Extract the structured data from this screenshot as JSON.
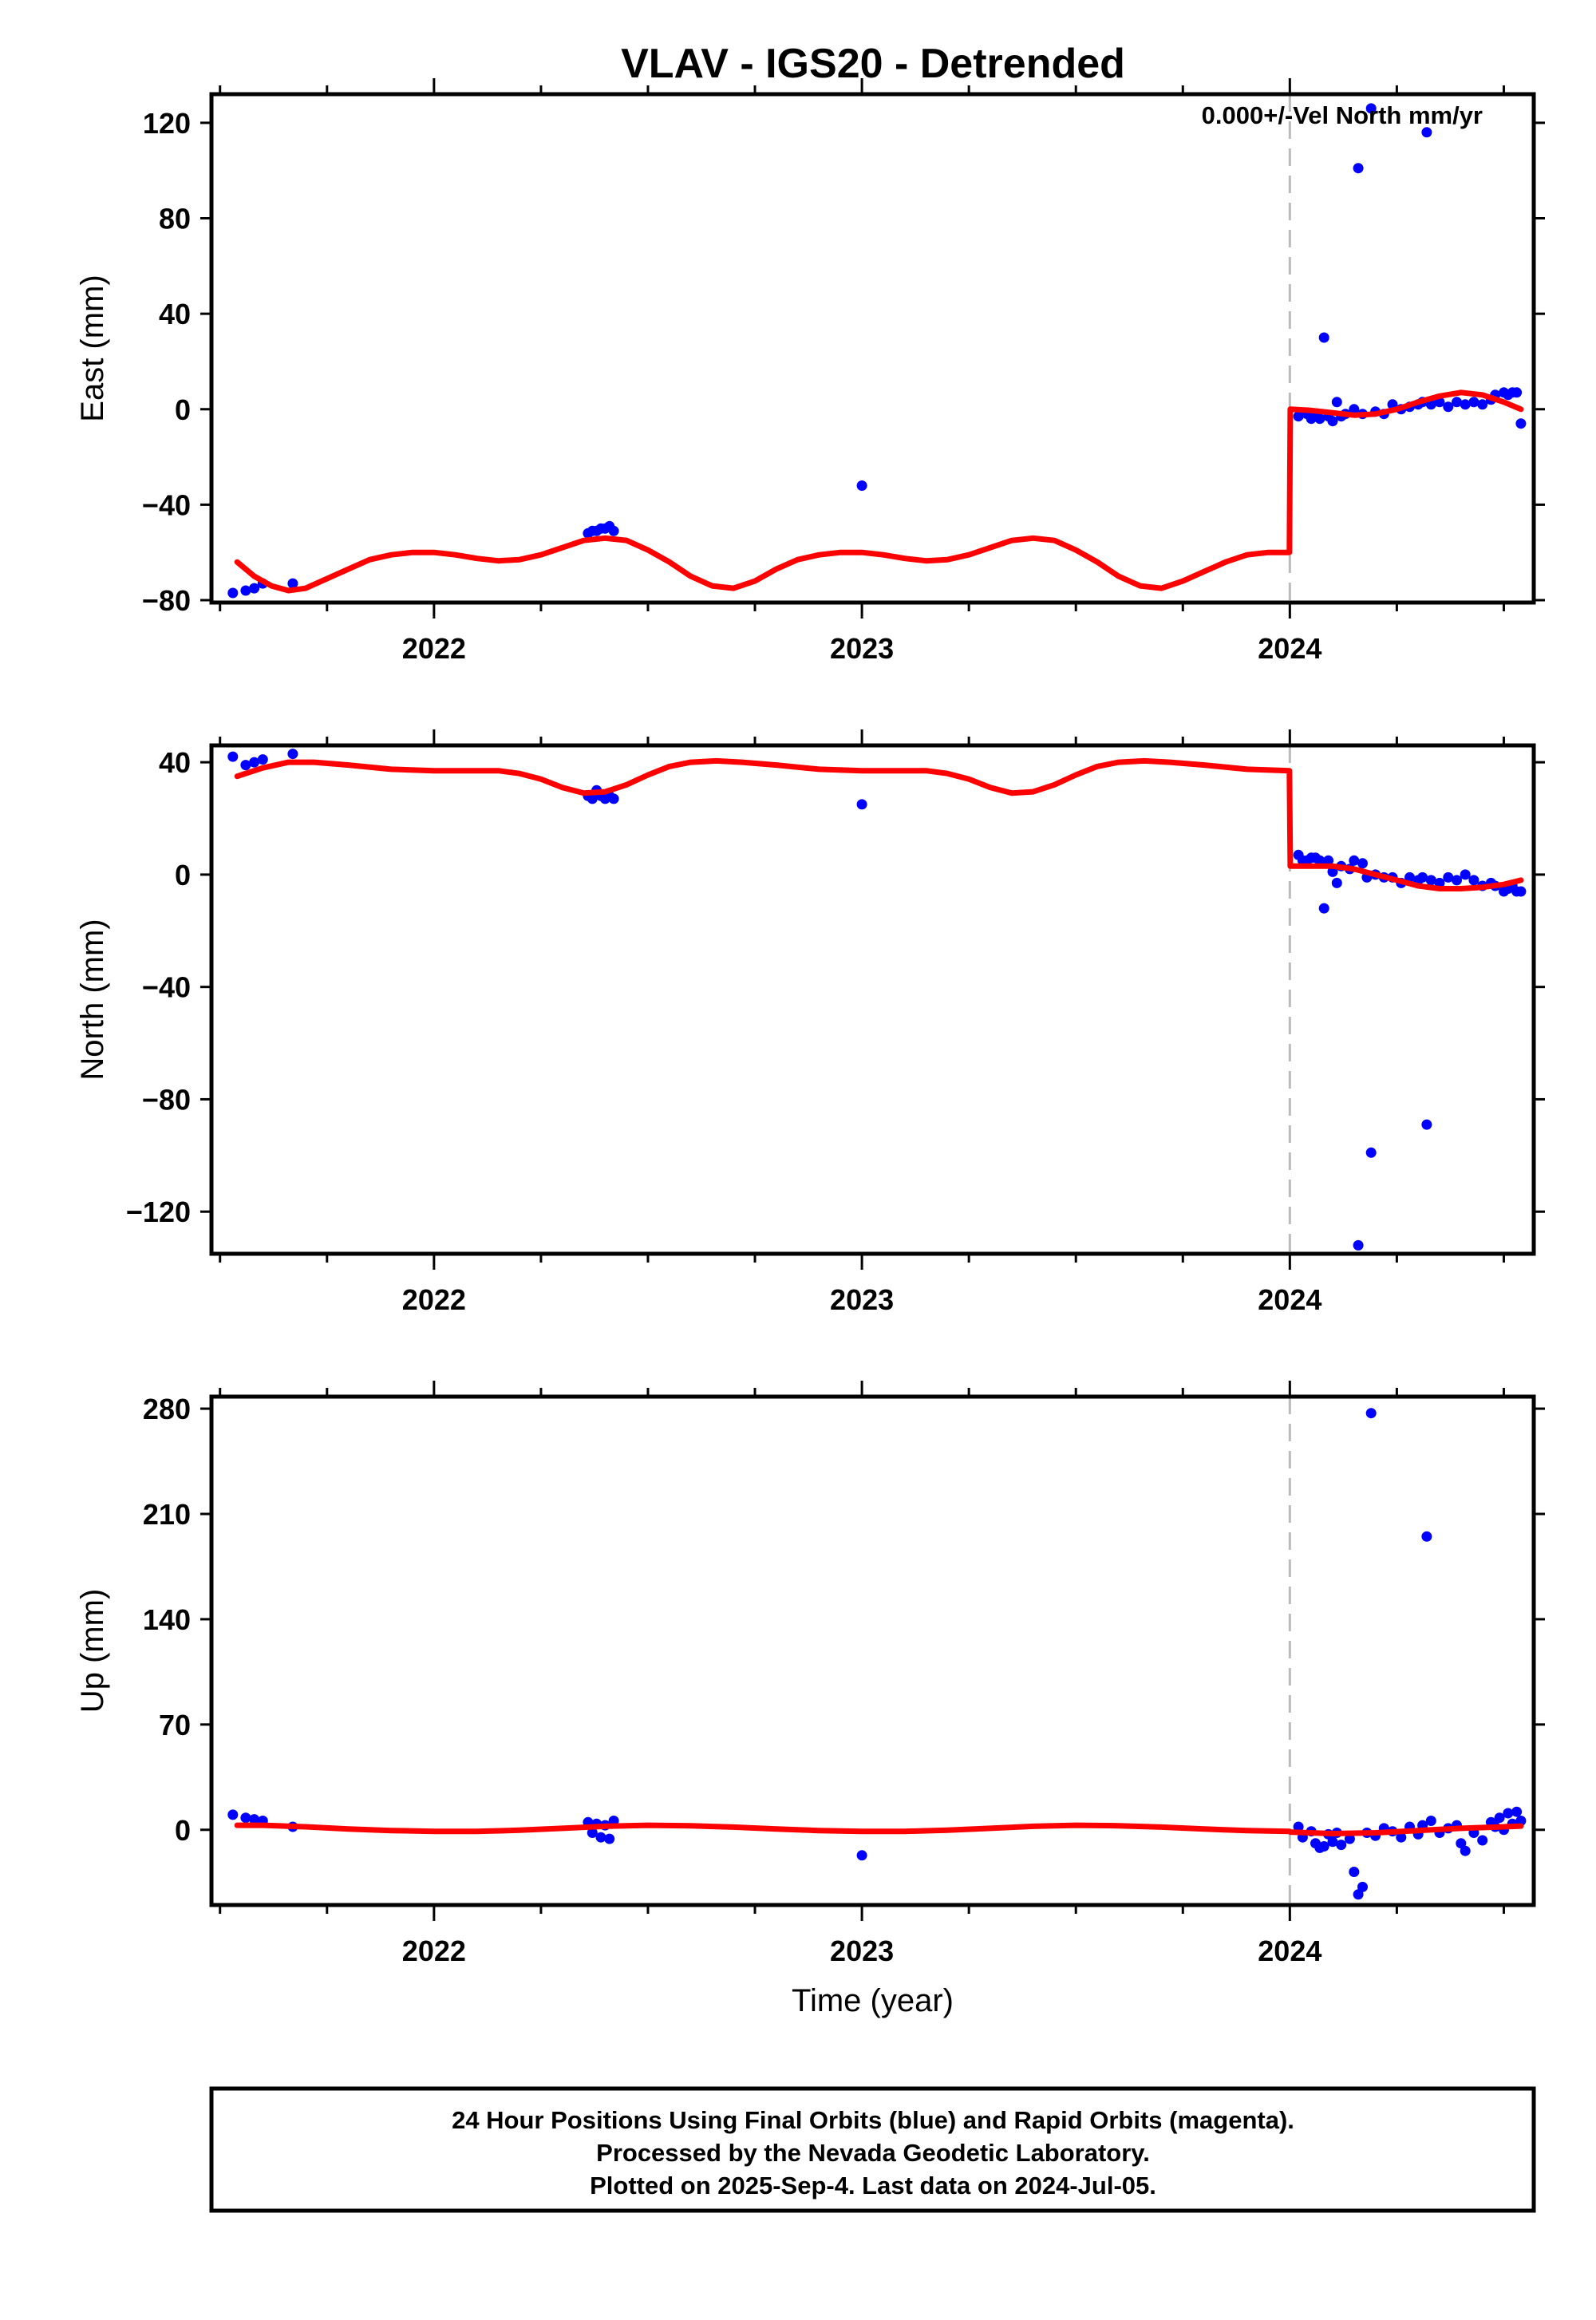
{
  "title": "VLAV - IGS20 - Detrended",
  "footer": {
    "line1": "24 Hour Positions Using Final Orbits (blue) and Rapid Orbits (magenta).",
    "line2": "Processed by the Nevada Geodetic Laboratory.",
    "line3": "Plotted on 2025-Sep-4. Last data on 2024-Jul-05."
  },
  "colors": {
    "points": "#0000ff",
    "model": "#ff0000",
    "marker_line": "#bbbbbb",
    "frame": "#000000"
  },
  "chart_data": [
    {
      "type": "scatter",
      "ylabel": "East (mm)",
      "xlabel": "",
      "xlim": [
        2021.48,
        2024.57
      ],
      "ylim": [
        -81,
        132
      ],
      "xticks": [
        2022,
        2023,
        2024
      ],
      "yticks": [
        -80,
        -40,
        0,
        40,
        80,
        120
      ],
      "annotation": "0.000+/-Vel North mm/yr",
      "step_epoch": 2024.0,
      "points": [
        [
          2021.53,
          -77
        ],
        [
          2021.56,
          -76
        ],
        [
          2021.58,
          -75
        ],
        [
          2021.6,
          -73
        ],
        [
          2021.67,
          -73
        ],
        [
          2022.36,
          -52
        ],
        [
          2022.37,
          -51
        ],
        [
          2022.38,
          -51
        ],
        [
          2022.39,
          -50
        ],
        [
          2022.4,
          -50
        ],
        [
          2022.41,
          -49
        ],
        [
          2022.42,
          -51
        ],
        [
          2023.0,
          -32
        ],
        [
          2024.02,
          -3
        ],
        [
          2024.04,
          -2
        ],
        [
          2024.05,
          -4
        ],
        [
          2024.06,
          -3
        ],
        [
          2024.07,
          -4
        ],
        [
          2024.08,
          30
        ],
        [
          2024.09,
          -3
        ],
        [
          2024.1,
          -5
        ],
        [
          2024.11,
          3
        ],
        [
          2024.12,
          -3
        ],
        [
          2024.13,
          -2
        ],
        [
          2024.15,
          0
        ],
        [
          2024.16,
          101
        ],
        [
          2024.17,
          -2
        ],
        [
          2024.19,
          126
        ],
        [
          2024.2,
          -1
        ],
        [
          2024.22,
          -2
        ],
        [
          2024.24,
          2
        ],
        [
          2024.26,
          0
        ],
        [
          2024.28,
          1
        ],
        [
          2024.3,
          2
        ],
        [
          2024.31,
          3
        ],
        [
          2024.32,
          116
        ],
        [
          2024.33,
          2
        ],
        [
          2024.35,
          3
        ],
        [
          2024.37,
          1
        ],
        [
          2024.39,
          3
        ],
        [
          2024.41,
          2
        ],
        [
          2024.43,
          3
        ],
        [
          2024.45,
          2
        ],
        [
          2024.47,
          4
        ],
        [
          2024.48,
          6
        ],
        [
          2024.5,
          7
        ],
        [
          2024.51,
          6
        ],
        [
          2024.52,
          7
        ],
        [
          2024.53,
          7
        ],
        [
          2024.54,
          -6
        ]
      ],
      "model": [
        [
          2021.54,
          -64
        ],
        [
          2021.58,
          -70
        ],
        [
          2021.62,
          -74
        ],
        [
          2021.66,
          -76
        ],
        [
          2021.7,
          -75
        ],
        [
          2021.75,
          -71
        ],
        [
          2021.8,
          -67
        ],
        [
          2021.85,
          -63
        ],
        [
          2021.9,
          -61
        ],
        [
          2021.95,
          -60
        ],
        [
          2022.0,
          -60
        ],
        [
          2022.05,
          -61
        ],
        [
          2022.1,
          -62.5
        ],
        [
          2022.15,
          -63.5
        ],
        [
          2022.2,
          -63
        ],
        [
          2022.25,
          -61
        ],
        [
          2022.3,
          -58
        ],
        [
          2022.35,
          -55
        ],
        [
          2022.4,
          -54
        ],
        [
          2022.45,
          -55
        ],
        [
          2022.5,
          -59
        ],
        [
          2022.55,
          -64
        ],
        [
          2022.6,
          -70
        ],
        [
          2022.65,
          -74
        ],
        [
          2022.7,
          -75
        ],
        [
          2022.75,
          -72
        ],
        [
          2022.8,
          -67
        ],
        [
          2022.85,
          -63
        ],
        [
          2022.9,
          -61
        ],
        [
          2022.95,
          -60
        ],
        [
          2023.0,
          -60
        ],
        [
          2023.05,
          -61
        ],
        [
          2023.1,
          -62.5
        ],
        [
          2023.15,
          -63.5
        ],
        [
          2023.2,
          -63
        ],
        [
          2023.25,
          -61
        ],
        [
          2023.3,
          -58
        ],
        [
          2023.35,
          -55
        ],
        [
          2023.4,
          -54
        ],
        [
          2023.45,
          -55
        ],
        [
          2023.5,
          -59
        ],
        [
          2023.55,
          -64
        ],
        [
          2023.6,
          -70
        ],
        [
          2023.65,
          -74
        ],
        [
          2023.7,
          -75
        ],
        [
          2023.75,
          -72
        ],
        [
          2023.8,
          -68
        ],
        [
          2023.85,
          -64
        ],
        [
          2023.9,
          -61
        ],
        [
          2023.95,
          -60
        ],
        [
          2023.999,
          -60
        ],
        [
          2024.001,
          0
        ],
        [
          2024.05,
          -0.5
        ],
        [
          2024.1,
          -1.5
        ],
        [
          2024.15,
          -2.5
        ],
        [
          2024.2,
          -2
        ],
        [
          2024.25,
          0
        ],
        [
          2024.3,
          3
        ],
        [
          2024.35,
          5.5
        ],
        [
          2024.4,
          7
        ],
        [
          2024.45,
          6
        ],
        [
          2024.5,
          3
        ],
        [
          2024.54,
          0
        ]
      ]
    },
    {
      "type": "scatter",
      "ylabel": "North (mm)",
      "xlabel": "",
      "xlim": [
        2021.48,
        2024.57
      ],
      "ylim": [
        -135,
        46
      ],
      "xticks": [
        2022,
        2023,
        2024
      ],
      "yticks": [
        -120,
        -80,
        -40,
        0,
        40
      ],
      "step_epoch": 2024.0,
      "points": [
        [
          2021.53,
          42
        ],
        [
          2021.56,
          39
        ],
        [
          2021.58,
          40
        ],
        [
          2021.6,
          41
        ],
        [
          2021.67,
          43
        ],
        [
          2022.36,
          28
        ],
        [
          2022.37,
          27
        ],
        [
          2022.38,
          30
        ],
        [
          2022.39,
          28
        ],
        [
          2022.4,
          27
        ],
        [
          2022.41,
          28
        ],
        [
          2022.42,
          27
        ],
        [
          2023.0,
          25
        ],
        [
          2024.02,
          7
        ],
        [
          2024.03,
          5
        ],
        [
          2024.04,
          5
        ],
        [
          2024.05,
          6
        ],
        [
          2024.06,
          6
        ],
        [
          2024.07,
          5
        ],
        [
          2024.08,
          -12
        ],
        [
          2024.09,
          5
        ],
        [
          2024.1,
          1
        ],
        [
          2024.11,
          -3
        ],
        [
          2024.12,
          3
        ],
        [
          2024.14,
          2
        ],
        [
          2024.15,
          5
        ],
        [
          2024.16,
          -132
        ],
        [
          2024.17,
          4
        ],
        [
          2024.18,
          -1
        ],
        [
          2024.19,
          -99
        ],
        [
          2024.2,
          0
        ],
        [
          2024.22,
          -1
        ],
        [
          2024.24,
          -1
        ],
        [
          2024.26,
          -3
        ],
        [
          2024.28,
          -1
        ],
        [
          2024.3,
          -2
        ],
        [
          2024.31,
          -1
        ],
        [
          2024.32,
          -89
        ],
        [
          2024.33,
          -2
        ],
        [
          2024.35,
          -3
        ],
        [
          2024.37,
          -1
        ],
        [
          2024.39,
          -2
        ],
        [
          2024.41,
          0
        ],
        [
          2024.43,
          -2
        ],
        [
          2024.45,
          -4
        ],
        [
          2024.47,
          -3
        ],
        [
          2024.48,
          -4
        ],
        [
          2024.5,
          -6
        ],
        [
          2024.51,
          -5
        ],
        [
          2024.52,
          -4
        ],
        [
          2024.53,
          -6
        ],
        [
          2024.54,
          -6
        ]
      ],
      "model": [
        [
          2021.54,
          35
        ],
        [
          2021.6,
          38
        ],
        [
          2021.66,
          40
        ],
        [
          2021.72,
          40
        ],
        [
          2021.8,
          39
        ],
        [
          2021.9,
          37.5
        ],
        [
          2022.0,
          37
        ],
        [
          2022.1,
          37
        ],
        [
          2022.15,
          37
        ],
        [
          2022.2,
          36
        ],
        [
          2022.25,
          34
        ],
        [
          2022.3,
          31
        ],
        [
          2022.35,
          29
        ],
        [
          2022.4,
          29.5
        ],
        [
          2022.45,
          32
        ],
        [
          2022.5,
          35.5
        ],
        [
          2022.55,
          38.5
        ],
        [
          2022.6,
          40
        ],
        [
          2022.66,
          40.5
        ],
        [
          2022.72,
          40
        ],
        [
          2022.8,
          39
        ],
        [
          2022.9,
          37.5
        ],
        [
          2023.0,
          37
        ],
        [
          2023.1,
          37
        ],
        [
          2023.15,
          37
        ],
        [
          2023.2,
          36
        ],
        [
          2023.25,
          34
        ],
        [
          2023.3,
          31
        ],
        [
          2023.35,
          29
        ],
        [
          2023.4,
          29.5
        ],
        [
          2023.45,
          32
        ],
        [
          2023.5,
          35.5
        ],
        [
          2023.55,
          38.5
        ],
        [
          2023.6,
          40
        ],
        [
          2023.66,
          40.5
        ],
        [
          2023.72,
          40
        ],
        [
          2023.8,
          39
        ],
        [
          2023.9,
          37.5
        ],
        [
          2023.999,
          37
        ],
        [
          2024.001,
          3
        ],
        [
          2024.05,
          3
        ],
        [
          2024.1,
          3
        ],
        [
          2024.15,
          2
        ],
        [
          2024.2,
          0
        ],
        [
          2024.25,
          -2
        ],
        [
          2024.3,
          -4
        ],
        [
          2024.35,
          -5
        ],
        [
          2024.4,
          -5
        ],
        [
          2024.45,
          -4.5
        ],
        [
          2024.5,
          -3.5
        ],
        [
          2024.54,
          -2
        ]
      ]
    },
    {
      "type": "scatter",
      "ylabel": "Up (mm)",
      "xlabel": "Time (year)",
      "xlim": [
        2021.48,
        2024.57
      ],
      "ylim": [
        -50,
        288
      ],
      "xticks": [
        2022,
        2023,
        2024
      ],
      "yticks": [
        0,
        70,
        140,
        210,
        280
      ],
      "step_epoch": 2024.0,
      "points": [
        [
          2021.53,
          10
        ],
        [
          2021.56,
          8
        ],
        [
          2021.58,
          7
        ],
        [
          2021.6,
          6
        ],
        [
          2021.67,
          2
        ],
        [
          2022.36,
          5
        ],
        [
          2022.37,
          -2
        ],
        [
          2022.38,
          4
        ],
        [
          2022.39,
          -5
        ],
        [
          2022.4,
          3
        ],
        [
          2022.41,
          -6
        ],
        [
          2022.42,
          6
        ],
        [
          2023.0,
          -17
        ],
        [
          2024.02,
          2
        ],
        [
          2024.03,
          -5
        ],
        [
          2024.05,
          -1
        ],
        [
          2024.06,
          -9
        ],
        [
          2024.07,
          -12
        ],
        [
          2024.08,
          -11
        ],
        [
          2024.09,
          -3
        ],
        [
          2024.1,
          -8
        ],
        [
          2024.11,
          -2
        ],
        [
          2024.12,
          -10
        ],
        [
          2024.14,
          -6
        ],
        [
          2024.15,
          -28
        ],
        [
          2024.16,
          -43
        ],
        [
          2024.17,
          -38
        ],
        [
          2024.18,
          -2
        ],
        [
          2024.19,
          277
        ],
        [
          2024.2,
          -4
        ],
        [
          2024.22,
          1
        ],
        [
          2024.24,
          -1
        ],
        [
          2024.26,
          -5
        ],
        [
          2024.28,
          2
        ],
        [
          2024.3,
          -3
        ],
        [
          2024.31,
          3
        ],
        [
          2024.32,
          195
        ],
        [
          2024.33,
          6
        ],
        [
          2024.35,
          -2
        ],
        [
          2024.37,
          1
        ],
        [
          2024.39,
          3
        ],
        [
          2024.4,
          -9
        ],
        [
          2024.41,
          -14
        ],
        [
          2024.43,
          -2
        ],
        [
          2024.45,
          -7
        ],
        [
          2024.47,
          5
        ],
        [
          2024.48,
          2
        ],
        [
          2024.49,
          8
        ],
        [
          2024.5,
          0
        ],
        [
          2024.51,
          11
        ],
        [
          2024.52,
          4
        ],
        [
          2024.53,
          12
        ],
        [
          2024.54,
          6
        ]
      ],
      "model": [
        [
          2021.54,
          3
        ],
        [
          2021.6,
          3
        ],
        [
          2021.7,
          2
        ],
        [
          2021.8,
          0.5
        ],
        [
          2021.9,
          -0.5
        ],
        [
          2022.0,
          -1
        ],
        [
          2022.1,
          -1
        ],
        [
          2022.2,
          -0.3
        ],
        [
          2022.3,
          1
        ],
        [
          2022.4,
          2.3
        ],
        [
          2022.5,
          3
        ],
        [
          2022.6,
          2.7
        ],
        [
          2022.7,
          1.8
        ],
        [
          2022.8,
          0.5
        ],
        [
          2022.9,
          -0.5
        ],
        [
          2023.0,
          -1
        ],
        [
          2023.1,
          -1
        ],
        [
          2023.2,
          -0.3
        ],
        [
          2023.3,
          1
        ],
        [
          2023.4,
          2.3
        ],
        [
          2023.5,
          3
        ],
        [
          2023.6,
          2.7
        ],
        [
          2023.7,
          1.8
        ],
        [
          2023.8,
          0.5
        ],
        [
          2023.9,
          -0.5
        ],
        [
          2023.999,
          -1
        ],
        [
          2024.001,
          -1.5
        ],
        [
          2024.1,
          -2.5
        ],
        [
          2024.2,
          -2
        ],
        [
          2024.3,
          -0.5
        ],
        [
          2024.4,
          1
        ],
        [
          2024.5,
          2
        ],
        [
          2024.54,
          2.5
        ]
      ]
    }
  ]
}
